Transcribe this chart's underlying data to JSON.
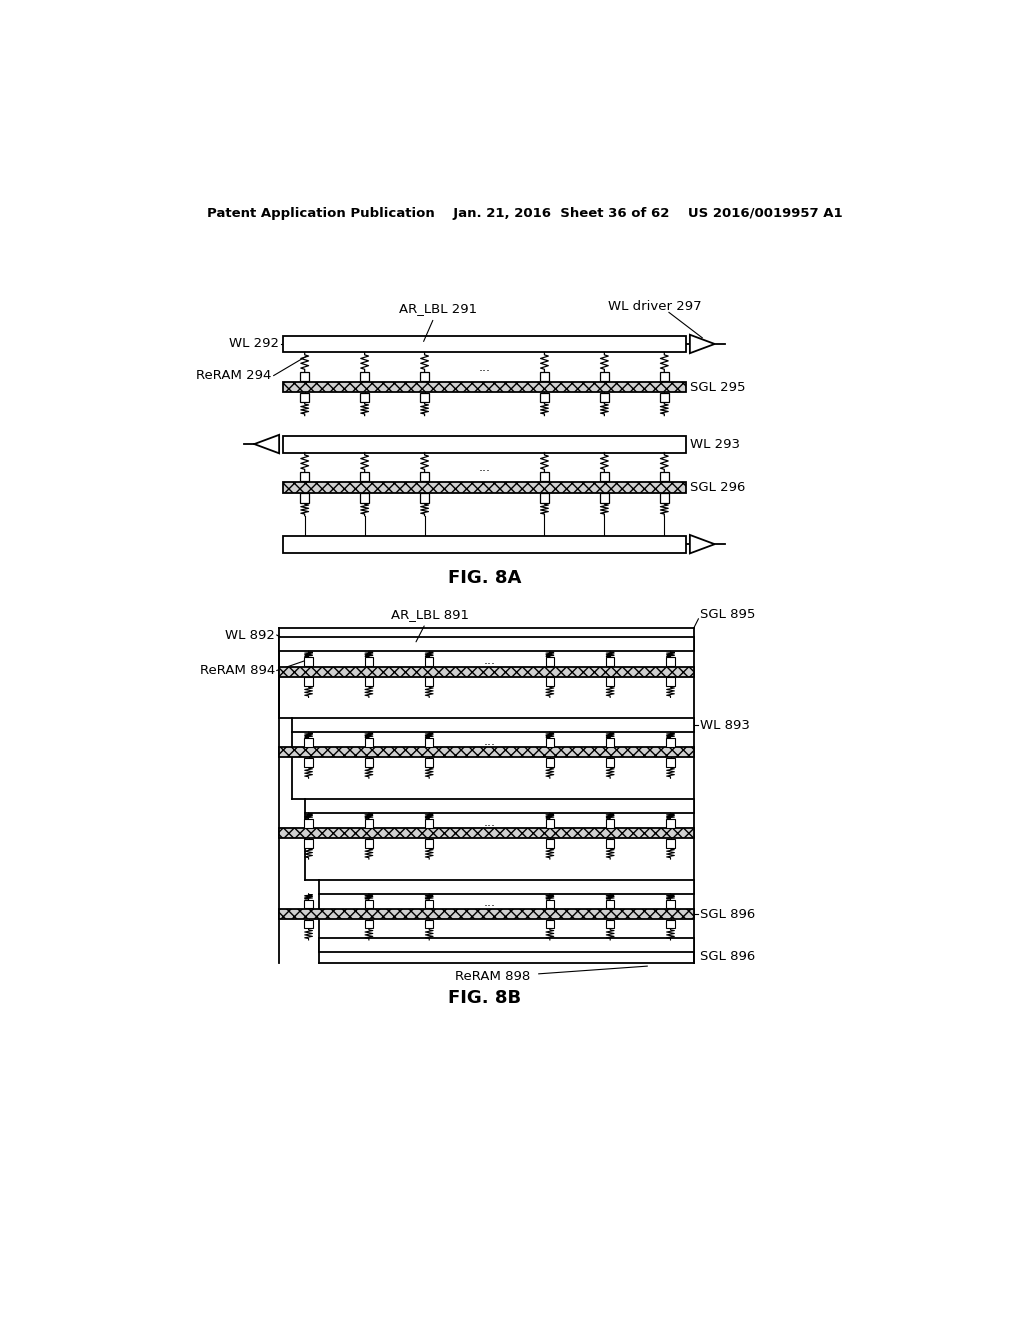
{
  "bg_color": "#ffffff",
  "line_color": "#000000",
  "header": "Patent Application Publication    Jan. 21, 2016  Sheet 36 of 62    US 2016/0019957 A1",
  "fig8a_title": "FIG. 8A",
  "fig8b_title": "FIG. 8B"
}
